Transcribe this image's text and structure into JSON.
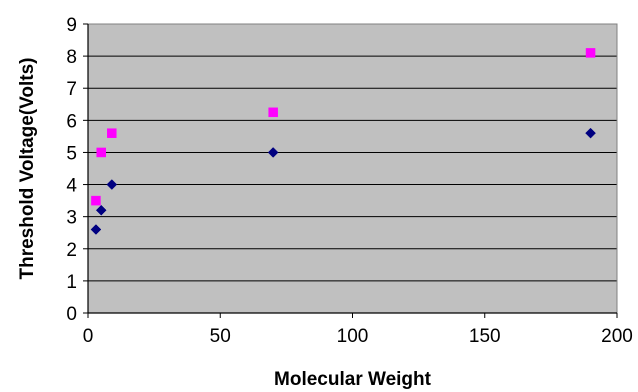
{
  "chart_data": {
    "type": "scatter",
    "title": "",
    "xlabel": "Molecular Weight",
    "ylabel": "Threshold Voltage(Volts)",
    "xlim": [
      0,
      200
    ],
    "ylim": [
      0,
      9
    ],
    "x_ticks": [
      0,
      50,
      100,
      150,
      200
    ],
    "y_ticks": [
      0,
      1,
      2,
      3,
      4,
      5,
      6,
      7,
      8,
      9
    ],
    "grid": {
      "horizontal": true,
      "vertical": false
    },
    "legend": "none",
    "plot_background": "#c0c0c0",
    "series": [
      {
        "marker": "diamond",
        "color": "#000080",
        "points": [
          {
            "x": 3,
            "y": 2.6
          },
          {
            "x": 5,
            "y": 3.2
          },
          {
            "x": 9,
            "y": 4.0
          },
          {
            "x": 70,
            "y": 5.0
          },
          {
            "x": 190,
            "y": 5.6
          }
        ]
      },
      {
        "marker": "square",
        "color": "#ff00ff",
        "points": [
          {
            "x": 3,
            "y": 3.5
          },
          {
            "x": 5,
            "y": 5.0
          },
          {
            "x": 9,
            "y": 5.6
          },
          {
            "x": 70,
            "y": 6.25
          },
          {
            "x": 190,
            "y": 8.1
          }
        ]
      }
    ]
  }
}
